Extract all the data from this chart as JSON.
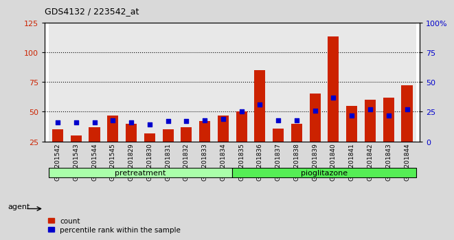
{
  "title": "GDS4132 / 223542_at",
  "samples": [
    "GSM201542",
    "GSM201543",
    "GSM201544",
    "GSM201545",
    "GSM201829",
    "GSM201830",
    "GSM201831",
    "GSM201832",
    "GSM201833",
    "GSM201834",
    "GSM201835",
    "GSM201836",
    "GSM201837",
    "GSM201838",
    "GSM201839",
    "GSM201840",
    "GSM201841",
    "GSM201842",
    "GSM201843",
    "GSM201844"
  ],
  "count_values": [
    35,
    30,
    37,
    47,
    40,
    32,
    35,
    37,
    42,
    47,
    50,
    85,
    36,
    40,
    65,
    113,
    55,
    60,
    62,
    72
  ],
  "percentile_values": [
    41,
    41,
    41,
    43,
    41,
    39,
    42,
    42,
    43,
    44,
    50,
    56,
    43,
    43,
    51,
    62,
    47,
    52,
    47,
    52
  ],
  "pretreatment_indices": [
    0,
    1,
    2,
    3,
    4,
    5,
    6,
    7,
    8,
    9
  ],
  "pioglitazone_indices": [
    10,
    11,
    12,
    13,
    14,
    15,
    16,
    17,
    18,
    19
  ],
  "bar_color": "#cc2200",
  "percentile_color": "#0000cc",
  "pretreatment_color": "#aaffaa",
  "pioglitazone_color": "#55ee55",
  "ylim_left": [
    25,
    125
  ],
  "ylim_right": [
    0,
    100
  ],
  "yticks_left": [
    25,
    50,
    75,
    100,
    125
  ],
  "yticks_right": [
    0,
    25,
    50,
    75,
    100
  ],
  "ytick_labels_right": [
    "0",
    "25",
    "50",
    "75",
    "100%"
  ],
  "background_color": "#d9d9d9",
  "plot_bg_color": "#ffffff",
  "agent_label": "agent",
  "legend_count": "count",
  "legend_percentile": "percentile rank within the sample",
  "cell_bg_color": "#cccccc"
}
